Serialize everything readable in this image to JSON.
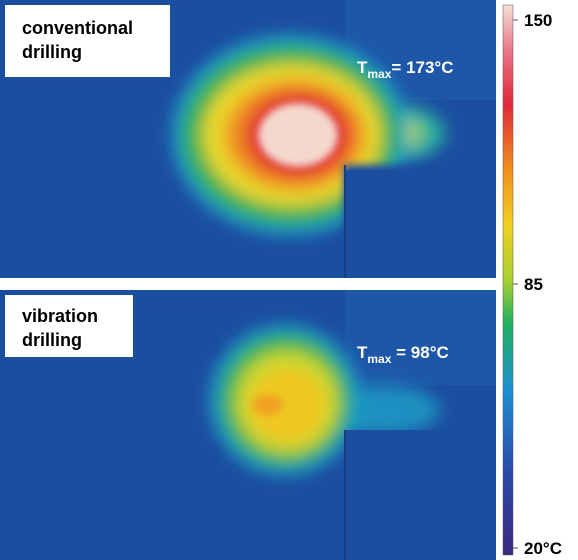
{
  "panels": [
    {
      "label_lines": [
        "conventional",
        "drilling"
      ],
      "tmax": {
        "symbol": "T",
        "subscript": "max",
        "text": "= 173°C"
      }
    },
    {
      "label_lines": [
        "vibration",
        "drilling"
      ],
      "tmax": {
        "symbol": "T",
        "subscript": "max",
        "text": " = 98°C"
      }
    }
  ],
  "colorbar": {
    "ticks": [
      150,
      85,
      {
        "value": 20,
        "label": "20°C"
      }
    ]
  }
}
